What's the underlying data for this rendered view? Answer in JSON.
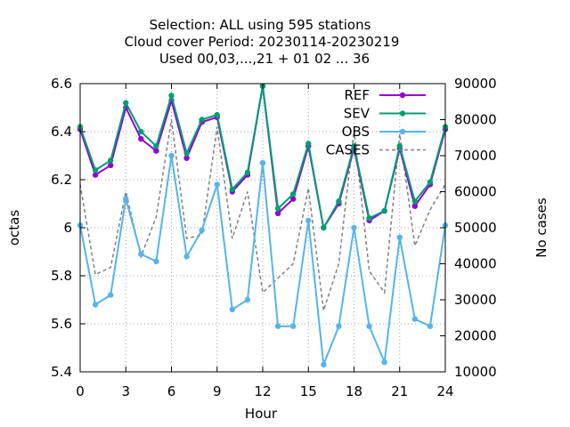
{
  "chart_data": {
    "type": "line",
    "title_lines": [
      "Selection: ALL using   595 stations",
      "Cloud cover   Period: 20230114-20230219",
      "Used  00,03,...,21  + 01 02 ... 36"
    ],
    "xlabel": "Hour",
    "ylabel": "octas",
    "y2label": "No cases",
    "xlim": [
      0,
      24
    ],
    "ylim": [
      5.4,
      6.6
    ],
    "y2lim": [
      10000,
      90000
    ],
    "xticks": [
      0,
      3,
      6,
      9,
      12,
      15,
      18,
      21,
      24
    ],
    "yticks": [
      5.4,
      5.6,
      5.8,
      6,
      6.2,
      6.4,
      6.6
    ],
    "y2ticks": [
      10000,
      20000,
      30000,
      40000,
      50000,
      60000,
      70000,
      80000,
      90000
    ],
    "grid": true,
    "legend_position": "top-right",
    "x": [
      0,
      1,
      2,
      3,
      4,
      5,
      6,
      7,
      8,
      9,
      10,
      11,
      12,
      13,
      14,
      15,
      16,
      17,
      18,
      19,
      20,
      21,
      22,
      23,
      24
    ],
    "series": [
      {
        "name": "REF",
        "axis": "y",
        "color": "#9400d3",
        "marker": "filled-circle",
        "dash": "solid",
        "values": [
          6.41,
          6.22,
          6.26,
          6.5,
          6.37,
          6.32,
          6.53,
          6.29,
          6.44,
          6.46,
          6.15,
          6.22,
          6.59,
          6.06,
          6.12,
          6.34,
          6.0,
          6.1,
          6.33,
          6.03,
          6.07,
          6.33,
          6.09,
          6.18,
          6.41
        ]
      },
      {
        "name": "SEV",
        "axis": "y",
        "color": "#009e73",
        "marker": "filled-circle",
        "dash": "solid",
        "values": [
          6.42,
          6.24,
          6.28,
          6.52,
          6.4,
          6.34,
          6.55,
          6.31,
          6.45,
          6.47,
          6.16,
          6.23,
          6.59,
          6.08,
          6.14,
          6.35,
          6.0,
          6.11,
          6.34,
          6.04,
          6.07,
          6.34,
          6.11,
          6.19,
          6.42
        ]
      },
      {
        "name": "OBS",
        "axis": "y",
        "color": "#56b4e9",
        "marker": "filled-circle",
        "dash": "solid",
        "values": [
          6.01,
          5.68,
          5.72,
          6.12,
          5.89,
          5.86,
          6.3,
          5.88,
          5.99,
          6.18,
          5.66,
          5.7,
          6.27,
          5.59,
          5.59,
          6.03,
          5.43,
          5.59,
          6.0,
          5.59,
          5.44,
          5.96,
          5.62,
          5.59,
          6.01
        ]
      },
      {
        "name": "CASES",
        "axis": "y2",
        "color": "#808080",
        "marker": "none",
        "dash": "dashed",
        "values": [
          62000,
          37000,
          39000,
          60000,
          42000,
          53000,
          80000,
          47000,
          48000,
          78000,
          47000,
          60000,
          32000,
          36000,
          40000,
          61000,
          27000,
          40000,
          77000,
          38000,
          32000,
          76000,
          45000,
          55000,
          62000
        ]
      }
    ]
  }
}
